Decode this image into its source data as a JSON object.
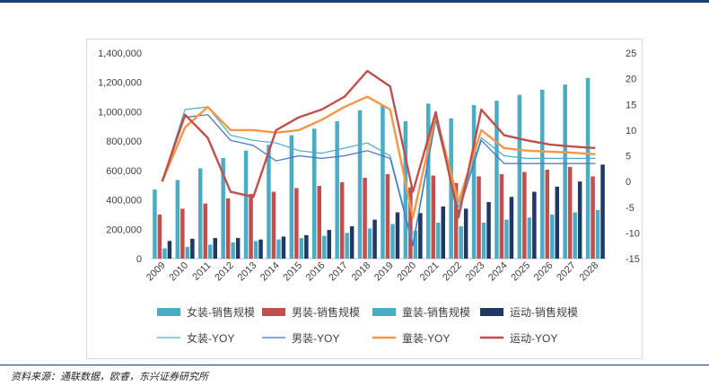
{
  "chart_data": {
    "type": "bar+line",
    "years": [
      "2009",
      "2010",
      "2011",
      "2012",
      "2013",
      "2014",
      "2015",
      "2016",
      "2017",
      "2018",
      "2019",
      "2020",
      "2021",
      "2022",
      "2023",
      "2024",
      "2025",
      "2026",
      "2027",
      "2028"
    ],
    "left_axis": {
      "min": 0,
      "max": 1400000,
      "step": 200000,
      "ticks": [
        "0",
        "200,000",
        "400,000",
        "600,000",
        "800,000",
        "1,000,000",
        "1,200,000",
        "1,400,000"
      ]
    },
    "right_axis": {
      "min": -15,
      "max": 25,
      "step": 5,
      "ticks": [
        "-15",
        "-10",
        "-5",
        "0",
        "5",
        "10",
        "15",
        "20",
        "25"
      ]
    },
    "bar_series": [
      {
        "name": "女装-销售规模",
        "color": "#4bacc6",
        "values": [
          470000,
          535000,
          615000,
          685000,
          735000,
          775000,
          840000,
          885000,
          935000,
          1010000,
          1045000,
          935000,
          1055000,
          955000,
          1045000,
          1075000,
          1115000,
          1150000,
          1185000,
          1230000
        ]
      },
      {
        "name": "男装-销售规模",
        "color": "#c0504d",
        "values": [
          300000,
          340000,
          375000,
          410000,
          440000,
          455000,
          480000,
          495000,
          520000,
          550000,
          575000,
          485000,
          565000,
          515000,
          560000,
          575000,
          590000,
          605000,
          625000,
          560000
        ]
      },
      {
        "name": "童装-销售规模",
        "color": "#4bacc6",
        "values": [
          70000,
          80000,
          95000,
          110000,
          120000,
          130000,
          140000,
          155000,
          175000,
          205000,
          235000,
          190000,
          245000,
          220000,
          245000,
          265000,
          280000,
          300000,
          315000,
          330000
        ]
      },
      {
        "name": "运动-销售规模",
        "color": "#1f3864",
        "values": [
          120000,
          135000,
          140000,
          140000,
          130000,
          150000,
          160000,
          195000,
          220000,
          265000,
          315000,
          310000,
          355000,
          340000,
          385000,
          420000,
          455000,
          490000,
          525000,
          640000
        ]
      }
    ],
    "line_series": [
      {
        "name": "女装-YOY",
        "color": "#4bacc6",
        "width": 1.2,
        "values": [
          0,
          14,
          14.5,
          9,
          8,
          7.5,
          6,
          5.5,
          6.5,
          7.5,
          5,
          -12,
          12.5,
          -5,
          8.5,
          5,
          4.5,
          4.5,
          4.5,
          4.5
        ]
      },
      {
        "name": "男装-YOY",
        "color": "#4472c4",
        "width": 1.2,
        "values": [
          0,
          12.5,
          13,
          8,
          7,
          4,
          5,
          4.5,
          5,
          6,
          4.5,
          -12.5,
          12,
          -6,
          8,
          3.5,
          3.5,
          3.5,
          3.5,
          3.5
        ]
      },
      {
        "name": "童装-YOY",
        "color": "#f79646",
        "width": 2.4,
        "values": [
          0,
          10.5,
          14.5,
          10,
          10,
          9.5,
          10,
          12,
          14.5,
          16.5,
          14,
          -7,
          13,
          -4,
          10,
          6.5,
          6,
          5.8,
          5.6,
          5.3
        ]
      },
      {
        "name": "运动-YOY",
        "color": "#c0504d",
        "width": 2.4,
        "values": [
          0,
          13,
          8.5,
          -2,
          -3,
          10,
          12.5,
          14,
          16.5,
          21.5,
          18.5,
          -2,
          13.5,
          -7,
          14,
          9,
          8,
          7.2,
          6.8,
          6.5
        ]
      }
    ]
  },
  "source": "资料来源：通联数据，欧睿，东兴证券研究所"
}
